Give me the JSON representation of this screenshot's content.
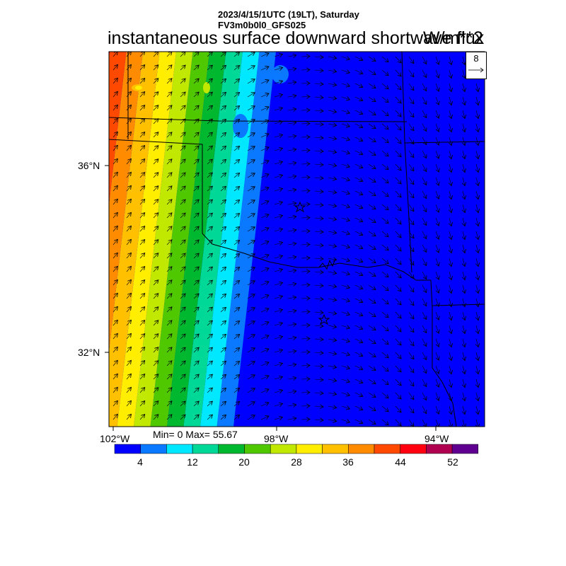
{
  "header": {
    "line1": "2023/4/15/1UTC (19LT), Saturday",
    "line2": "FV3m0b0l0_GFS025"
  },
  "title": "instantaneous surface downward shortwave flux",
  "units": "W/m**2",
  "stats": "Min= 0 Max= 55.67",
  "reference_vector": {
    "value": "8",
    "arrow_icon": "arrow-right-icon"
  },
  "axes": {
    "lat_labels": [
      "36°N",
      "32°N"
    ],
    "lon_labels": [
      "102°W",
      "98°W",
      "94°W"
    ]
  },
  "colorbar": {
    "colors": [
      "#0000ff",
      "#0a78ff",
      "#00e8ff",
      "#00d898",
      "#00b830",
      "#50c800",
      "#c0e800",
      "#ffee00",
      "#ffc000",
      "#ff8c00",
      "#ff4800",
      "#ff0010",
      "#b00050",
      "#600090"
    ],
    "labels": [
      "4",
      "12",
      "20",
      "28",
      "36",
      "44",
      "52"
    ]
  },
  "map": {
    "field_colors_low_to_high": [
      "#0000ff",
      "#0a78ff",
      "#00e8ff",
      "#00d898",
      "#00b830",
      "#50c800",
      "#c0e800",
      "#ffee00",
      "#ffc000",
      "#ff8c00",
      "#ff4800",
      "#ff0010",
      "#b00050",
      "#600090"
    ],
    "wind_vectors": true,
    "city_markers": [
      "star-marker",
      "star-marker"
    ]
  }
}
